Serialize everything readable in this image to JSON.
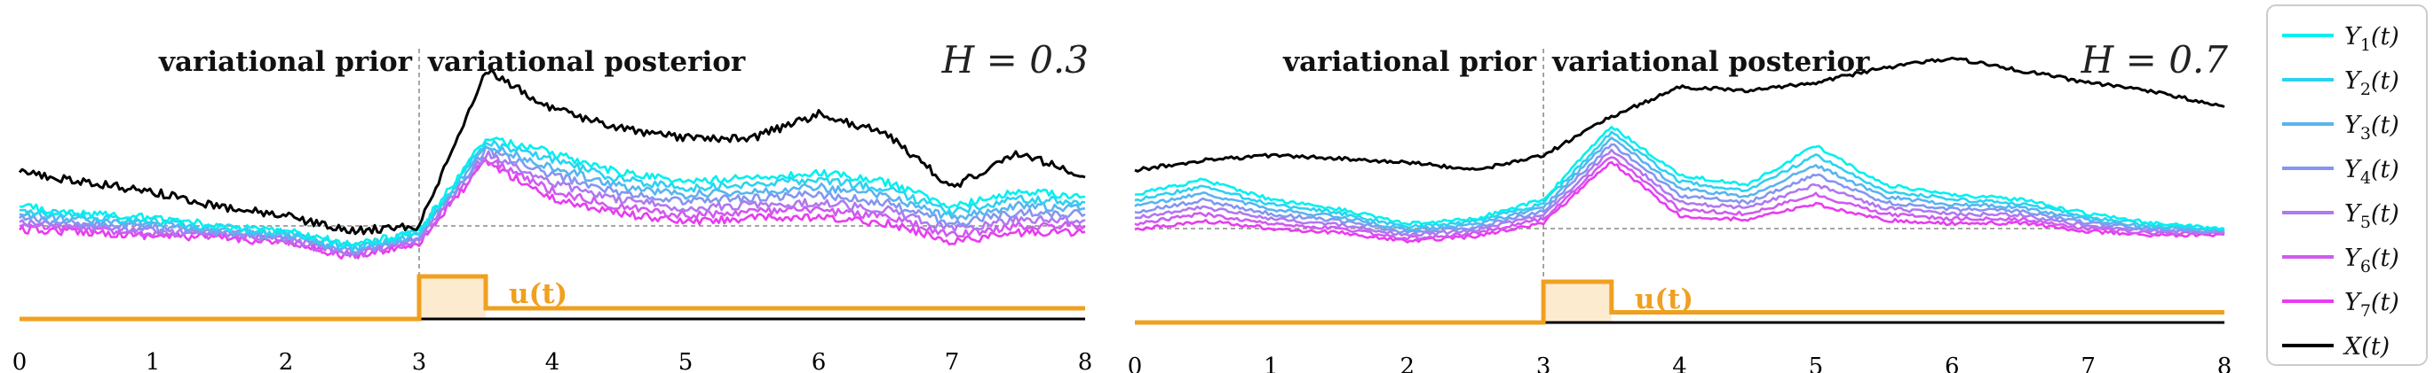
{
  "chart_data": [
    {
      "type": "line",
      "title": "H = 0.3",
      "xlim": [
        0,
        8
      ],
      "xticks": [
        "0",
        "1",
        "2",
        "3",
        "4",
        "5",
        "6",
        "7",
        "8"
      ],
      "region_labels": [
        "variational prior",
        "variational posterior"
      ],
      "control_label": "u(t)",
      "x": [
        0,
        0.5,
        1,
        1.5,
        2,
        2.5,
        3,
        3.5,
        4,
        4.5,
        5,
        5.5,
        6,
        6.5,
        7,
        7.5,
        8
      ],
      "series": [
        {
          "name": "X(t)",
          "values": [
            0.55,
            0.45,
            0.35,
            0.2,
            0.1,
            -0.05,
            0.0,
            1.6,
            1.2,
            1.0,
            0.9,
            0.9,
            1.15,
            0.95,
            0.4,
            0.75,
            0.5
          ]
        },
        {
          "name": "Y1(t)",
          "values": [
            0.2,
            0.12,
            0.08,
            0.0,
            -0.05,
            -0.2,
            -0.05,
            0.9,
            0.75,
            0.55,
            0.45,
            0.5,
            0.55,
            0.45,
            0.2,
            0.35,
            0.3
          ]
        },
        {
          "name": "Y2(t)",
          "values": [
            0.16,
            0.09,
            0.05,
            -0.02,
            -0.07,
            -0.22,
            -0.07,
            0.86,
            0.68,
            0.48,
            0.39,
            0.43,
            0.48,
            0.38,
            0.14,
            0.28,
            0.24
          ]
        },
        {
          "name": "Y3(t)",
          "values": [
            0.12,
            0.06,
            0.02,
            -0.04,
            -0.09,
            -0.24,
            -0.09,
            0.82,
            0.6,
            0.41,
            0.32,
            0.36,
            0.4,
            0.31,
            0.08,
            0.21,
            0.18
          ]
        },
        {
          "name": "Y4(t)",
          "values": [
            0.08,
            0.03,
            -0.01,
            -0.06,
            -0.11,
            -0.26,
            -0.11,
            0.78,
            0.52,
            0.34,
            0.25,
            0.29,
            0.32,
            0.24,
            0.02,
            0.14,
            0.12
          ]
        },
        {
          "name": "Y5(t)",
          "values": [
            0.04,
            0.0,
            -0.04,
            -0.08,
            -0.13,
            -0.28,
            -0.13,
            0.74,
            0.44,
            0.27,
            0.18,
            0.22,
            0.24,
            0.17,
            -0.04,
            0.07,
            0.06
          ]
        },
        {
          "name": "Y6(t)",
          "values": [
            0.0,
            -0.03,
            -0.07,
            -0.1,
            -0.15,
            -0.3,
            -0.15,
            0.7,
            0.36,
            0.2,
            0.11,
            0.15,
            0.16,
            0.1,
            -0.1,
            0.0,
            0.0
          ]
        },
        {
          "name": "Y7(t)",
          "values": [
            -0.04,
            -0.06,
            -0.1,
            -0.12,
            -0.17,
            -0.32,
            -0.17,
            0.66,
            0.28,
            0.13,
            0.04,
            0.08,
            0.08,
            0.03,
            -0.16,
            -0.07,
            -0.06
          ]
        }
      ],
      "u": {
        "x": [
          0,
          3,
          3,
          3.5,
          3.5,
          8
        ],
        "values": [
          0,
          0,
          1,
          1,
          0.25,
          0.25
        ]
      }
    },
    {
      "type": "line",
      "title": "H = 0.7",
      "xlim": [
        0,
        8
      ],
      "xticks": [
        "0",
        "1",
        "2",
        "3",
        "4",
        "5",
        "6",
        "7",
        "8"
      ],
      "region_labels": [
        "variational prior",
        "variational posterior"
      ],
      "control_label": "u(t)",
      "x": [
        0,
        0.5,
        1,
        1.5,
        2,
        2.5,
        3,
        3.5,
        4,
        4.5,
        5,
        5.5,
        6,
        6.5,
        7,
        7.5,
        8
      ],
      "series": [
        {
          "name": "X(t)",
          "values": [
            0.6,
            0.7,
            0.75,
            0.72,
            0.68,
            0.6,
            0.75,
            1.15,
            1.45,
            1.42,
            1.5,
            1.65,
            1.75,
            1.62,
            1.5,
            1.4,
            1.25
          ]
        },
        {
          "name": "Y1(t)",
          "values": [
            0.35,
            0.5,
            0.3,
            0.2,
            0.05,
            0.1,
            0.3,
            1.05,
            0.55,
            0.45,
            0.85,
            0.45,
            0.35,
            0.3,
            0.15,
            0.05,
            0.0
          ]
        },
        {
          "name": "Y2(t)",
          "values": [
            0.29,
            0.43,
            0.25,
            0.16,
            0.02,
            0.07,
            0.26,
            0.99,
            0.48,
            0.39,
            0.75,
            0.39,
            0.3,
            0.26,
            0.12,
            0.03,
            -0.01
          ]
        },
        {
          "name": "Y3(t)",
          "values": [
            0.23,
            0.36,
            0.2,
            0.12,
            -0.01,
            0.04,
            0.22,
            0.93,
            0.41,
            0.33,
            0.65,
            0.33,
            0.25,
            0.22,
            0.09,
            0.01,
            -0.02
          ]
        },
        {
          "name": "Y4(t)",
          "values": [
            0.17,
            0.29,
            0.15,
            0.08,
            -0.04,
            0.01,
            0.18,
            0.87,
            0.34,
            0.27,
            0.55,
            0.27,
            0.2,
            0.18,
            0.06,
            -0.01,
            -0.03
          ]
        },
        {
          "name": "Y5(t)",
          "values": [
            0.11,
            0.22,
            0.1,
            0.04,
            -0.07,
            -0.02,
            0.14,
            0.81,
            0.27,
            0.21,
            0.45,
            0.21,
            0.15,
            0.14,
            0.03,
            -0.03,
            -0.04
          ]
        },
        {
          "name": "Y6(t)",
          "values": [
            0.05,
            0.15,
            0.05,
            0.0,
            -0.1,
            -0.05,
            0.1,
            0.75,
            0.2,
            0.15,
            0.35,
            0.15,
            0.1,
            0.1,
            0.0,
            -0.05,
            -0.05
          ]
        },
        {
          "name": "Y7(t)",
          "values": [
            -0.01,
            0.08,
            0.0,
            -0.04,
            -0.13,
            -0.08,
            0.06,
            0.69,
            0.13,
            0.09,
            0.25,
            0.09,
            0.05,
            0.06,
            -0.03,
            -0.07,
            -0.06
          ]
        }
      ],
      "u": {
        "x": [
          0,
          3,
          3,
          3.5,
          3.5,
          8
        ],
        "values": [
          0,
          0,
          1,
          1,
          0.25,
          0.25
        ]
      }
    }
  ],
  "legend": {
    "position": "right",
    "entries": [
      {
        "label_base": "Y",
        "label_sub": "1",
        "label_tail": "(t)",
        "color": "#00f0f0"
      },
      {
        "label_base": "Y",
        "label_sub": "2",
        "label_tail": "(t)",
        "color": "#2cd2f0"
      },
      {
        "label_base": "Y",
        "label_sub": "3",
        "label_tail": "(t)",
        "color": "#58b4f0"
      },
      {
        "label_base": "Y",
        "label_sub": "4",
        "label_tail": "(t)",
        "color": "#8496f0"
      },
      {
        "label_base": "Y",
        "label_sub": "5",
        "label_tail": "(t)",
        "color": "#b078f0"
      },
      {
        "label_base": "Y",
        "label_sub": "6",
        "label_tail": "(t)",
        "color": "#d05af0"
      },
      {
        "label_base": "Y",
        "label_sub": "7",
        "label_tail": "(t)",
        "color": "#e83cf0"
      },
      {
        "label_base": "X",
        "label_sub": "",
        "label_tail": "(t)",
        "color": "#000000"
      }
    ]
  },
  "colors": {
    "control": "#f0a020",
    "control_fill": "#fdebd0",
    "baseline": "#000000",
    "guide": "#888888"
  }
}
